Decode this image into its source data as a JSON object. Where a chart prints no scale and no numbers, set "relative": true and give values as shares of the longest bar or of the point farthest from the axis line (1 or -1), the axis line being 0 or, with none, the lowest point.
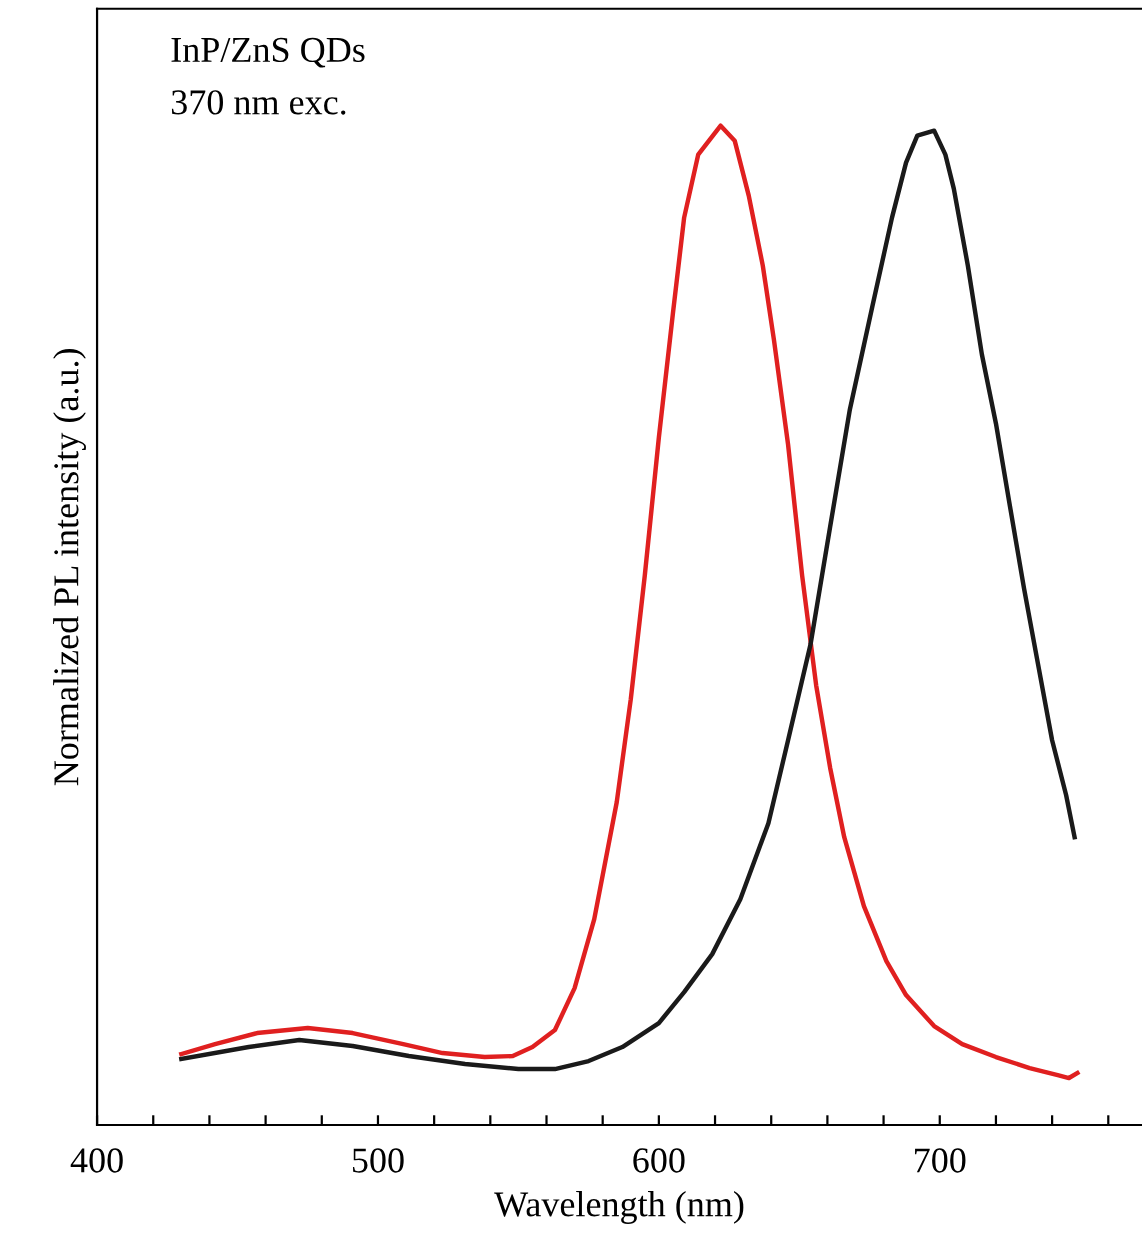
{
  "chart_data": {
    "type": "line",
    "relative": true,
    "xlabel": "Wavelength (nm)",
    "ylabel": "Normalized PL intensity (a.u.)",
    "annotations": [
      "InP/ZnS QDs",
      "370 nm exc."
    ],
    "xlim": [
      400,
      772
    ],
    "xticks": [
      400,
      {
        "value": 420,
        "label": null
      },
      {
        "value": 440,
        "label": null
      },
      {
        "value": 460,
        "label": null
      },
      {
        "value": 480,
        "label": null
      },
      500,
      {
        "value": 520,
        "label": null
      },
      {
        "value": 540,
        "label": null
      },
      {
        "value": 560,
        "label": null
      },
      {
        "value": 580,
        "label": null
      },
      600,
      {
        "value": 620,
        "label": null
      },
      {
        "value": 640,
        "label": null
      },
      {
        "value": 660,
        "label": null
      },
      {
        "value": 680,
        "label": null
      },
      700,
      {
        "value": 720,
        "label": null
      },
      {
        "value": 740,
        "label": null
      },
      {
        "value": 760,
        "label": null
      }
    ],
    "grid": false,
    "legend": false,
    "line_style": "solid",
    "series": [
      {
        "color": "#e02020",
        "x": [
          430,
          442,
          457,
          475,
          491,
          509,
          523,
          538,
          548,
          555,
          563,
          570,
          577,
          585,
          590,
          595,
          600,
          605,
          609,
          614,
          622,
          627,
          632,
          637,
          641,
          646,
          651,
          656,
          661,
          666,
          673,
          681,
          688,
          698,
          708,
          720,
          732,
          742,
          746,
          749
        ],
        "values": [
          0.071,
          0.081,
          0.092,
          0.097,
          0.092,
          0.081,
          0.072,
          0.068,
          0.069,
          0.078,
          0.095,
          0.137,
          0.206,
          0.323,
          0.426,
          0.55,
          0.688,
          0.812,
          0.908,
          0.971,
          1.0,
          0.985,
          0.93,
          0.86,
          0.785,
          0.681,
          0.55,
          0.44,
          0.357,
          0.288,
          0.219,
          0.164,
          0.13,
          0.099,
          0.081,
          0.068,
          0.057,
          0.05,
          0.047,
          0.052
        ]
      },
      {
        "color": "#1a1a1a",
        "x": [
          430,
          454,
          472,
          491,
          511,
          531,
          550,
          563,
          575,
          587,
          600,
          609,
          619,
          629,
          639,
          646,
          654,
          661,
          668,
          676,
          683,
          688,
          692,
          698,
          702,
          705,
          710,
          715,
          720,
          725,
          730,
          735,
          740,
          745,
          748
        ],
        "values": [
          0.066,
          0.078,
          0.085,
          0.079,
          0.069,
          0.061,
          0.056,
          0.056,
          0.064,
          0.078,
          0.102,
          0.133,
          0.171,
          0.226,
          0.302,
          0.385,
          0.481,
          0.599,
          0.716,
          0.819,
          0.908,
          0.963,
          0.99,
          0.995,
          0.971,
          0.937,
          0.86,
          0.771,
          0.702,
          0.619,
          0.537,
          0.461,
          0.385,
          0.33,
          0.288
        ]
      }
    ]
  }
}
